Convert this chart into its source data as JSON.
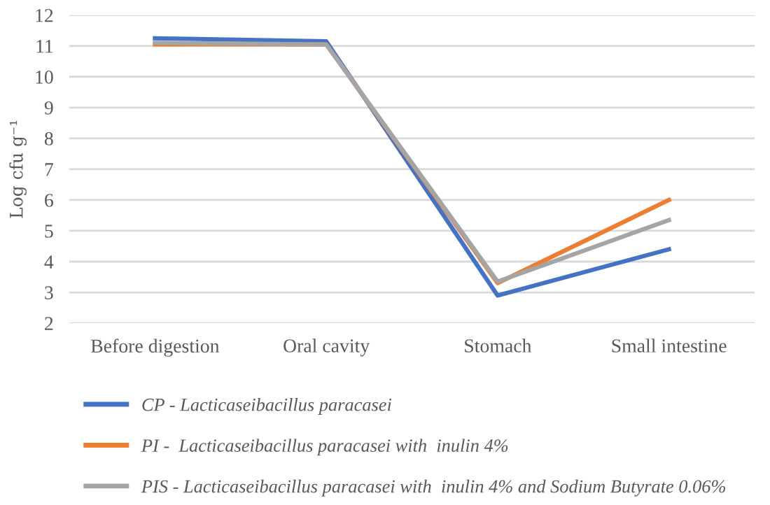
{
  "chart_data": {
    "type": "line",
    "ylabel": "Log cfu g⁻¹",
    "categories": [
      "Before digestion",
      "Oral cavity",
      "Stomach",
      "Small intestine"
    ],
    "series": [
      {
        "name": "CP - Lacticaseibacillus paracasei",
        "color": "#4472c4",
        "values": [
          11.25,
          11.15,
          2.9,
          4.4
        ]
      },
      {
        "name": "PI -  Lacticaseibacillus paracasei with  inulin 4%",
        "color": "#ed7d31",
        "values": [
          11.05,
          11.05,
          3.3,
          6.0
        ]
      },
      {
        "name": "PIS - Lacticaseibacillus paracasei with  inulin 4% and Sodium Butyrate 0.06%",
        "color": "#a5a5a5",
        "values": [
          11.1,
          11.05,
          3.35,
          5.35
        ]
      }
    ],
    "ylim": [
      2,
      12
    ],
    "yticks": [
      2,
      3,
      4,
      5,
      6,
      7,
      8,
      9,
      10,
      11,
      12
    ],
    "grid": "y",
    "legend": "bottom",
    "marker": "none",
    "line_style": "solid"
  }
}
